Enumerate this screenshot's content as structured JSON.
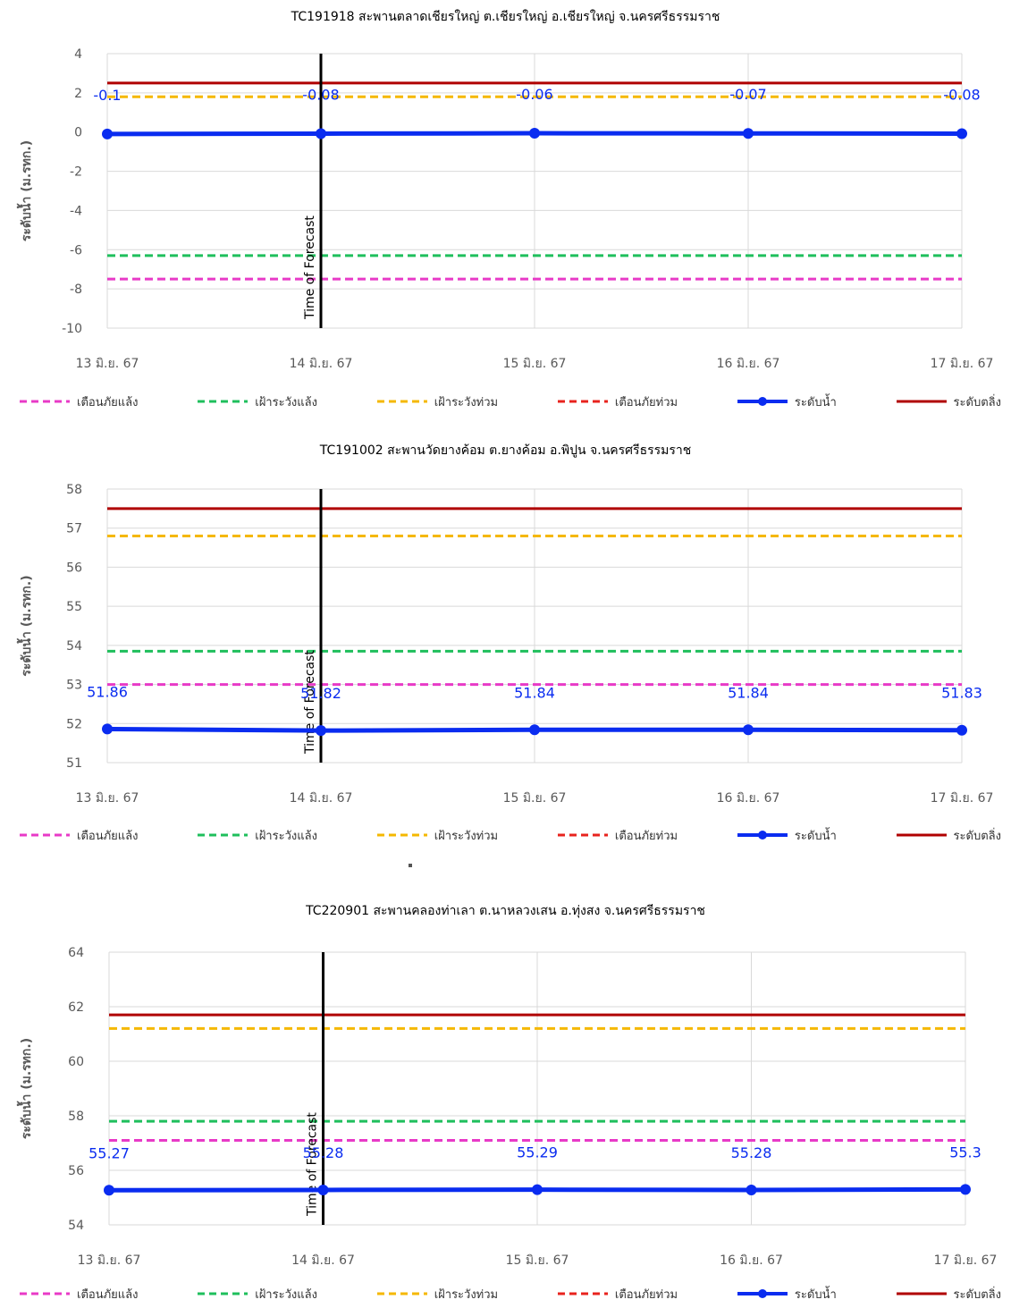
{
  "chart_data": [
    {
      "type": "line",
      "title": "TC191918 สะพานตลาดเชียรใหญ่ ต.เชียรใหญ่ อ.เชียรใหญ่ จ.นครศรีธรรมราช",
      "ylabel": "ระดับน้ำ (ม.รทก.)",
      "categories": [
        "13 มิ.ย. 67",
        "14 มิ.ย. 67",
        "15 มิ.ย. 67",
        "16 มิ.ย. 67",
        "17 มิ.ย. 67"
      ],
      "ylim": [
        -10,
        4
      ],
      "yticks": [
        "4",
        "2",
        "0",
        "-2",
        "-4",
        "-6",
        "-8",
        "-10"
      ],
      "series": [
        {
          "name": "เตือนภัยแล้ง",
          "value": -7.5,
          "color": "#e83ac7",
          "style": "dashed"
        },
        {
          "name": "เฝ้าระวังแล้ง",
          "value": -6.3,
          "color": "#1fbf5c",
          "style": "dashed"
        },
        {
          "name": "เฝ้าระวังท่วม",
          "value": 1.8,
          "color": "#f5b800",
          "style": "dashed"
        },
        {
          "name": "เตือนภัยท่วม",
          "value": null,
          "color": "#e8231e",
          "style": "dashed"
        },
        {
          "name": "ระดับน้ำ",
          "values": [
            -0.1,
            -0.08,
            -0.06,
            -0.07,
            -0.08
          ],
          "labels": [
            "-0.1",
            "-0.08",
            "-0.06",
            "-0.07",
            "-0.08"
          ],
          "color": "#0a2cf0",
          "style": "marker"
        },
        {
          "name": "ระดับตลิ่ง",
          "value": 2.5,
          "color": "#b00000",
          "style": "solid"
        }
      ],
      "annotation": "Time of Forecast",
      "forecast_index": 1
    },
    {
      "type": "line",
      "title": "TC191002 สะพานวัดยางค้อม ต.ยางค้อม อ.พิปูน จ.นครศรีธรรมราช",
      "ylabel": "ระดับน้ำ (ม.รทก.)",
      "categories": [
        "13 มิ.ย. 67",
        "14 มิ.ย. 67",
        "15 มิ.ย. 67",
        "16 มิ.ย. 67",
        "17 มิ.ย. 67"
      ],
      "ylim": [
        51,
        58
      ],
      "yticks": [
        "58",
        "57",
        "56",
        "55",
        "54",
        "53",
        "52",
        "51"
      ],
      "series": [
        {
          "name": "เตือนภัยแล้ง",
          "value": 53.0,
          "color": "#e83ac7",
          "style": "dashed"
        },
        {
          "name": "เฝ้าระวังแล้ง",
          "value": 53.85,
          "color": "#1fbf5c",
          "style": "dashed"
        },
        {
          "name": "เฝ้าระวังท่วม",
          "value": 56.8,
          "color": "#f5b800",
          "style": "dashed"
        },
        {
          "name": "เตือนภัยท่วม",
          "value": null,
          "color": "#e8231e",
          "style": "dashed"
        },
        {
          "name": "ระดับน้ำ",
          "values": [
            51.86,
            51.82,
            51.84,
            51.84,
            51.83
          ],
          "labels": [
            "51.86",
            "51.82",
            "51.84",
            "51.84",
            "51.83"
          ],
          "color": "#0a2cf0",
          "style": "marker"
        },
        {
          "name": "ระดับตลิ่ง",
          "value": 57.5,
          "color": "#b00000",
          "style": "solid"
        }
      ],
      "annotation": "Time of Forecast",
      "forecast_index": 1
    },
    {
      "type": "line",
      "title": "TC220901 สะพานคลองท่าเลา ต.นาหลวงเสน อ.ทุ่งสง จ.นครศรีธรรมราช",
      "ylabel": "ระดับน้ำ (ม.รทก.)",
      "categories": [
        "13 มิ.ย. 67",
        "14 มิ.ย. 67",
        "15 มิ.ย. 67",
        "16 มิ.ย. 67",
        "17 มิ.ย. 67"
      ],
      "ylim": [
        54,
        64
      ],
      "yticks": [
        "64",
        "62",
        "60",
        "58",
        "56",
        "54"
      ],
      "series": [
        {
          "name": "เตือนภัยแล้ง",
          "value": 57.1,
          "color": "#e83ac7",
          "style": "dashed"
        },
        {
          "name": "เฝ้าระวังแล้ง",
          "value": 57.8,
          "color": "#1fbf5c",
          "style": "dashed"
        },
        {
          "name": "เฝ้าระวังท่วม",
          "value": 61.2,
          "color": "#f5b800",
          "style": "dashed"
        },
        {
          "name": "เตือนภัยท่วม",
          "value": null,
          "color": "#e8231e",
          "style": "dashed"
        },
        {
          "name": "ระดับน้ำ",
          "values": [
            55.27,
            55.28,
            55.29,
            55.28,
            55.3
          ],
          "labels": [
            "55.27",
            "55.28",
            "55.29",
            "55.28",
            "55.3"
          ],
          "color": "#0a2cf0",
          "style": "marker"
        },
        {
          "name": "ระดับตลิ่ง",
          "value": 61.7,
          "color": "#b00000",
          "style": "solid"
        }
      ],
      "annotation": "Time of Forecast",
      "forecast_index": 1
    }
  ]
}
